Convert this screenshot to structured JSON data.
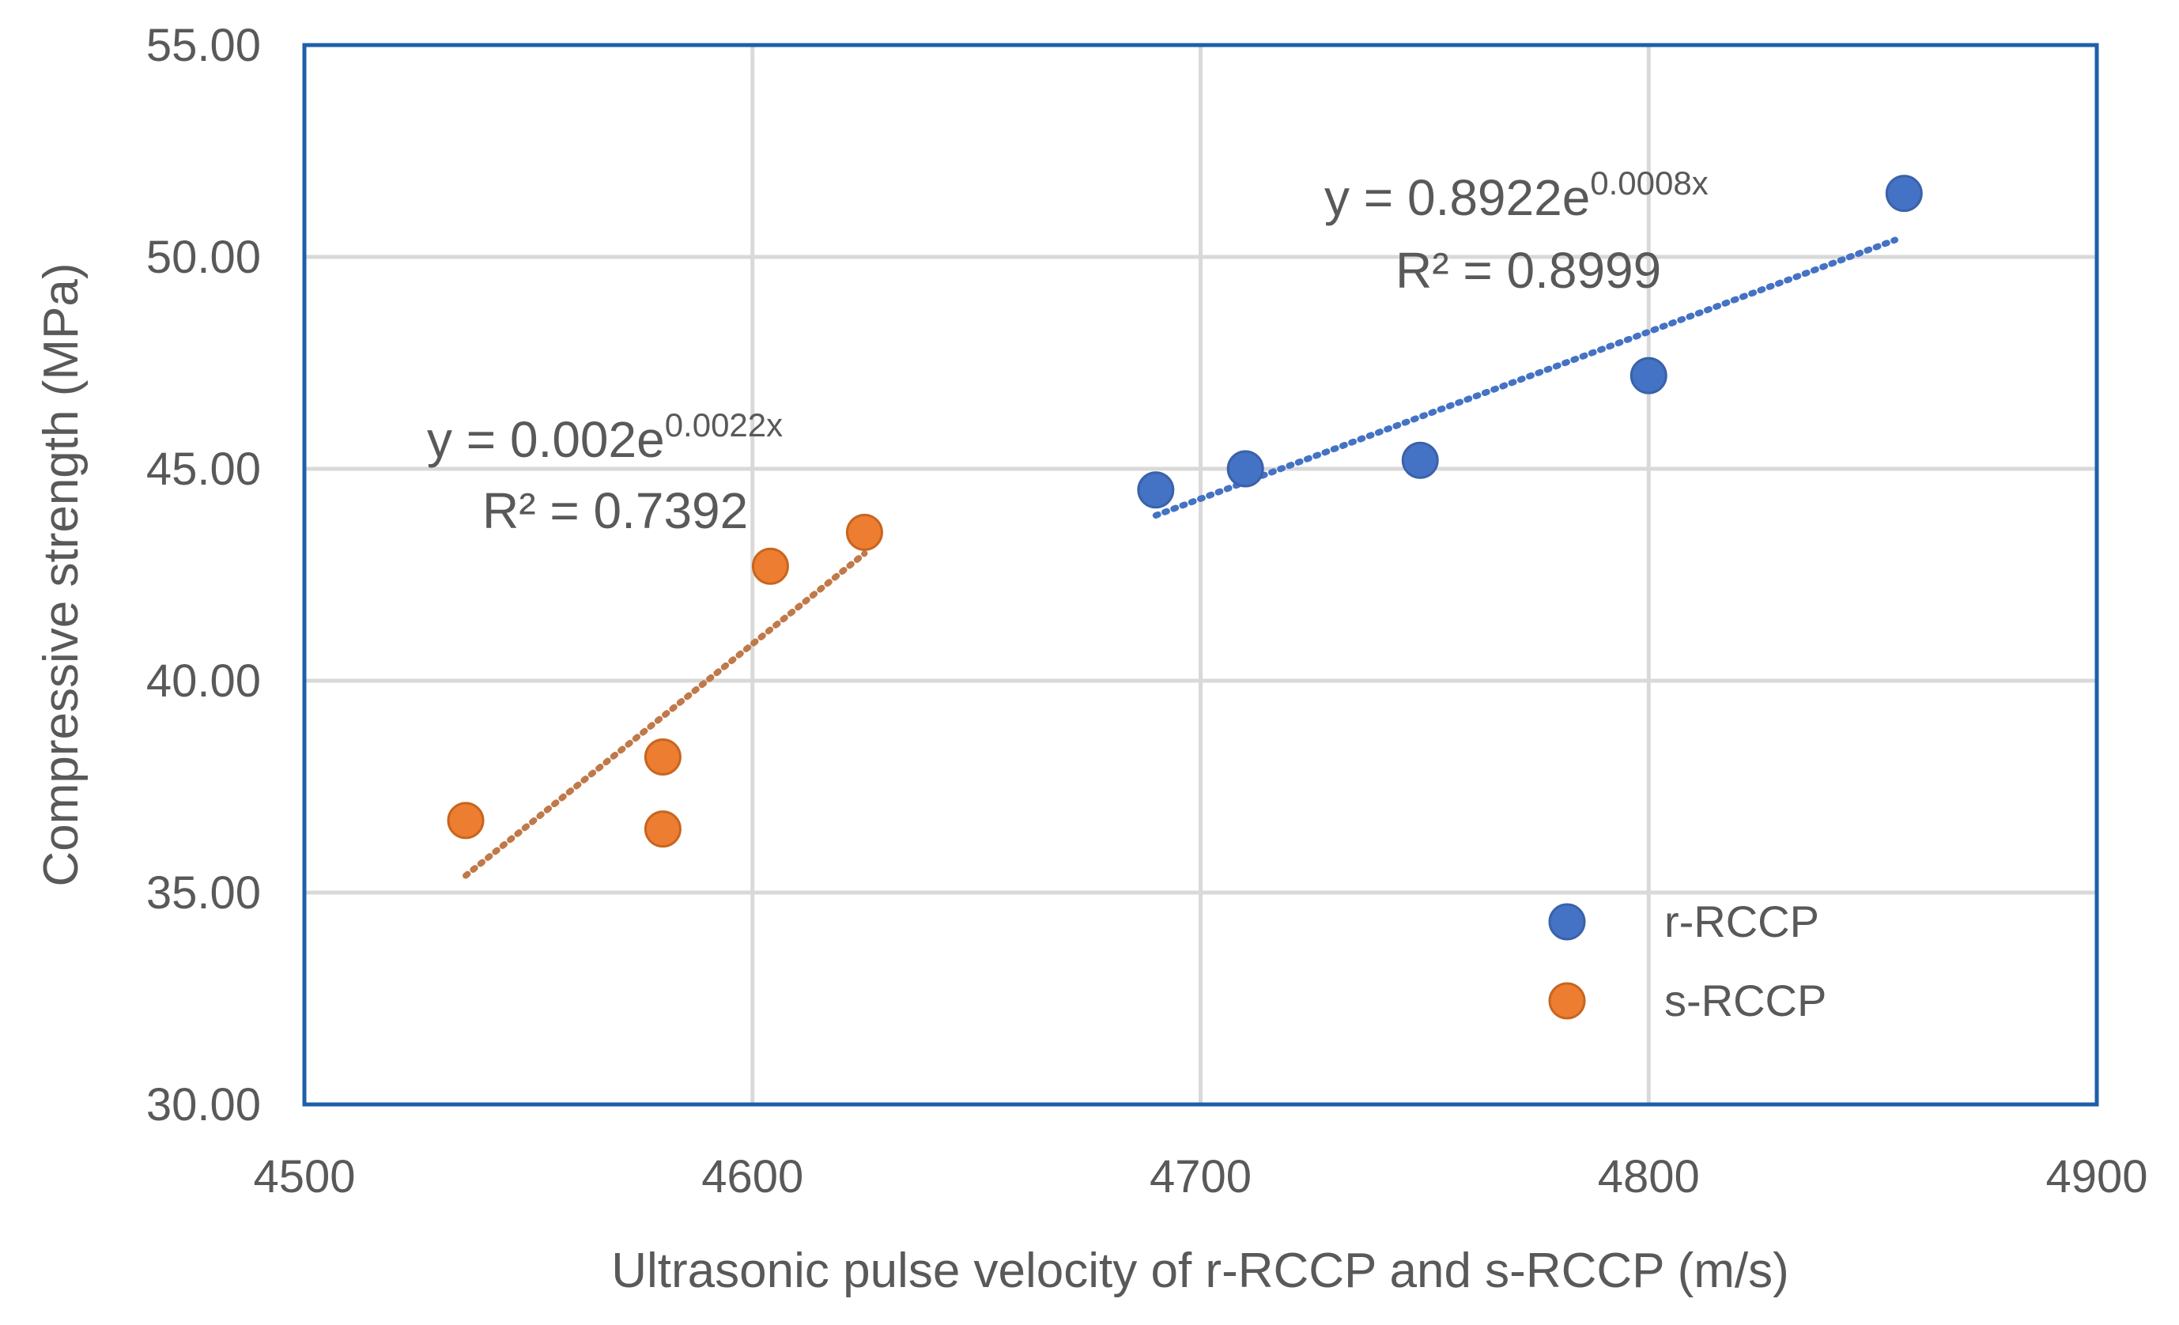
{
  "chart_data": {
    "type": "scatter",
    "title": "",
    "xlabel": "Ultrasonic pulse velocity of r-RCCP and s-RCCP (m/s)",
    "ylabel": "Compressive strength (MPa)",
    "xlim": [
      4500,
      4900
    ],
    "ylim": [
      30,
      55
    ],
    "xticks": [
      4500,
      4600,
      4700,
      4800,
      4900
    ],
    "yticks": [
      30,
      35,
      40,
      45,
      50,
      55
    ],
    "xtick_labels": [
      "4500",
      "4600",
      "4700",
      "4800",
      "4900"
    ],
    "ytick_labels": [
      "30.00",
      "35.00",
      "40.00",
      "45.00",
      "50.00",
      "55.00"
    ],
    "grid": true,
    "legend_position": "bottom-right",
    "series": [
      {
        "name": "r-RCCP",
        "color": "#4472C4",
        "x": [
          4690,
          4710,
          4749,
          4800,
          4857
        ],
        "y": [
          44.5,
          45.0,
          45.2,
          47.2,
          51.5
        ],
        "trendline": {
          "type": "exponential",
          "x_range": [
            4690,
            4855
          ],
          "coef_a": 0.8922,
          "coef_b": 0.0008,
          "y_range_fit": [
            43.9,
            50.4
          ],
          "equation_main": "y = 0.8922e",
          "equation_exp": "0.0008x",
          "r2_label": "R² = 0.8999"
        }
      },
      {
        "name": "s-RCCP",
        "color": "#ED7D31",
        "x": [
          4536,
          4580,
          4580,
          4604,
          4625
        ],
        "y": [
          36.7,
          38.2,
          36.5,
          42.7,
          43.5
        ],
        "trendline": {
          "type": "exponential",
          "x_range": [
            4536,
            4625
          ],
          "coef_a": 0.002,
          "coef_b": 0.0022,
          "y_range_fit": [
            35.4,
            43.0
          ],
          "equation_main": "y = 0.002e",
          "equation_exp": "0.0022x",
          "r2_label": "R² = 0.7392"
        }
      }
    ]
  },
  "colors": {
    "frame": "#1F5FA8",
    "grid": "#D9D9D9",
    "text": "#595959",
    "r_trend": "#4472C4",
    "s_trend": "#C0794A"
  }
}
